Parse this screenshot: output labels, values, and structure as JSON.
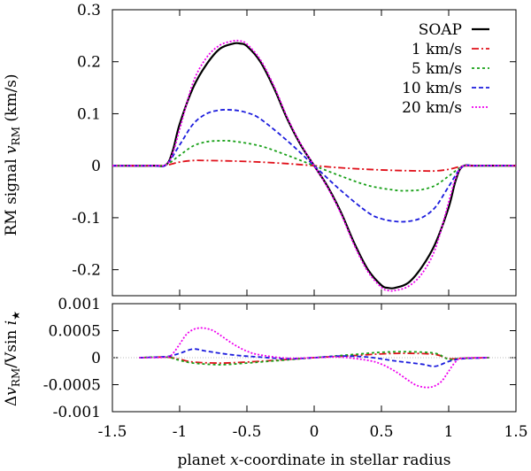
{
  "chart_data": [
    {
      "type": "line",
      "panel": "top",
      "title": "",
      "xlabel": "",
      "ylabel": "RM signal v_RM (km/s)",
      "ylabel_parts": {
        "main": "RM signal ",
        "var": "v",
        "sub": "RM",
        "unit": " (km/s)"
      },
      "xlim": [
        -1.5,
        1.5
      ],
      "ylim": [
        -0.25,
        0.3
      ],
      "yticks": [
        0.3,
        0.2,
        0.1,
        0,
        -0.1,
        -0.2
      ],
      "ytick_labels": [
        "0.3",
        "0.2",
        "0.1",
        "0",
        "-0.1",
        "-0.2"
      ],
      "legend_position": "top-right",
      "series": [
        {
          "name": "SOAP",
          "color": "#000000",
          "dash": "solid",
          "x": [
            -1.5,
            -1.2,
            -1.1,
            -1.05,
            -1.0,
            -0.9,
            -0.8,
            -0.7,
            -0.6,
            -0.55,
            -0.5,
            -0.4,
            -0.3,
            -0.2,
            -0.1,
            0,
            0.1,
            0.2,
            0.3,
            0.4,
            0.5,
            0.55,
            0.6,
            0.7,
            0.8,
            0.9,
            1.0,
            1.05,
            1.1,
            1.2,
            1.5
          ],
          "y": [
            0,
            0,
            0.002,
            0.03,
            0.08,
            0.15,
            0.195,
            0.225,
            0.235,
            0.235,
            0.23,
            0.2,
            0.15,
            0.09,
            0.04,
            0,
            -0.04,
            -0.09,
            -0.15,
            -0.2,
            -0.23,
            -0.235,
            -0.235,
            -0.225,
            -0.195,
            -0.15,
            -0.08,
            -0.03,
            -0.002,
            0,
            0
          ]
        },
        {
          "name": "1 km/s",
          "color": "#e0101a",
          "dash": "8 3 2 3",
          "x": [
            -1.5,
            -1.2,
            -1.1,
            -1.0,
            -0.9,
            -0.8,
            -0.6,
            -0.4,
            -0.2,
            0,
            0.2,
            0.4,
            0.6,
            0.8,
            0.9,
            1.0,
            1.1,
            1.2,
            1.5
          ],
          "y": [
            0,
            0,
            0.001,
            0.007,
            0.01,
            0.01,
            0.009,
            0.007,
            0.004,
            0,
            -0.004,
            -0.007,
            -0.009,
            -0.01,
            -0.01,
            -0.007,
            -0.001,
            0,
            0
          ]
        },
        {
          "name": "5 km/s",
          "color": "#18a018",
          "dash": "3 3",
          "x": [
            -1.5,
            -1.2,
            -1.1,
            -1.0,
            -0.9,
            -0.8,
            -0.7,
            -0.6,
            -0.4,
            -0.2,
            0,
            0.2,
            0.4,
            0.6,
            0.7,
            0.8,
            0.9,
            1.0,
            1.1,
            1.2,
            1.5
          ],
          "y": [
            0,
            0,
            0.002,
            0.02,
            0.038,
            0.046,
            0.048,
            0.047,
            0.038,
            0.02,
            0,
            -0.02,
            -0.038,
            -0.047,
            -0.048,
            -0.046,
            -0.038,
            -0.02,
            -0.002,
            0,
            0
          ]
        },
        {
          "name": "10 km/s",
          "color": "#1c1cdd",
          "dash": "5 3",
          "x": [
            -1.5,
            -1.2,
            -1.1,
            -1.0,
            -0.9,
            -0.8,
            -0.7,
            -0.6,
            -0.5,
            -0.4,
            -0.2,
            0,
            0.2,
            0.4,
            0.5,
            0.6,
            0.7,
            0.8,
            0.9,
            1.0,
            1.1,
            1.2,
            1.5
          ],
          "y": [
            0,
            0,
            0.002,
            0.04,
            0.08,
            0.1,
            0.107,
            0.107,
            0.102,
            0.09,
            0.048,
            0,
            -0.048,
            -0.09,
            -0.102,
            -0.107,
            -0.107,
            -0.1,
            -0.08,
            -0.04,
            -0.002,
            0,
            0
          ]
        },
        {
          "name": "20 km/s",
          "color": "#ee00ee",
          "dash": "2 2",
          "x": [
            -1.5,
            -1.2,
            -1.1,
            -1.05,
            -1.0,
            -0.9,
            -0.8,
            -0.7,
            -0.6,
            -0.55,
            -0.5,
            -0.4,
            -0.3,
            -0.2,
            -0.1,
            0,
            0.1,
            0.2,
            0.3,
            0.4,
            0.5,
            0.55,
            0.6,
            0.7,
            0.8,
            0.9,
            1.0,
            1.05,
            1.1,
            1.2,
            1.5
          ],
          "y": [
            0,
            0,
            0.002,
            0.025,
            0.07,
            0.16,
            0.208,
            0.232,
            0.24,
            0.24,
            0.234,
            0.204,
            0.154,
            0.093,
            0.042,
            0,
            -0.042,
            -0.093,
            -0.154,
            -0.204,
            -0.234,
            -0.24,
            -0.24,
            -0.232,
            -0.208,
            -0.16,
            -0.07,
            -0.025,
            -0.002,
            0,
            0
          ]
        }
      ]
    },
    {
      "type": "line",
      "panel": "bottom",
      "title": "",
      "xlabel": "planet x-coordinate in stellar radius",
      "xlabel_parts": {
        "pre": "planet ",
        "var": "x",
        "post": "-coordinate in stellar radius"
      },
      "ylabel": "Δv_RM/Vsin i_★",
      "ylabel_parts": {
        "delta": "Δ",
        "var": "v",
        "sub": "RM",
        "mid": "/Vsin ",
        "var2": "i",
        "sub2": "★"
      },
      "xlim": [
        -1.5,
        1.5
      ],
      "ylim": [
        -0.001,
        0.001
      ],
      "xticks": [
        -1.5,
        -1,
        -0.5,
        0,
        0.5,
        1,
        1.5
      ],
      "xtick_labels": [
        "-1.5",
        "-1",
        "-0.5",
        "0",
        "0.5",
        "1",
        "1.5"
      ],
      "yticks": [
        0.001,
        0.0005,
        0,
        -0.0005,
        -0.001
      ],
      "ytick_labels": [
        "0.001",
        "0.0005",
        "0",
        "-0.0005",
        "-0.001"
      ],
      "series": [
        {
          "name": "1 km/s",
          "color": "#e0101a",
          "dash": "8 3 2 3",
          "x": [
            -1.3,
            -1.1,
            -1.0,
            -0.9,
            -0.7,
            -0.5,
            -0.3,
            0,
            0.3,
            0.5,
            0.7,
            0.9,
            1.0,
            1.1,
            1.3
          ],
          "y": [
            0,
            1e-05,
            -3e-05,
            -8e-05,
            -0.0001,
            -8e-05,
            -5e-05,
            0,
            4e-05,
            7e-05,
            8e-05,
            6e-05,
            -2e-05,
            -1e-05,
            0
          ]
        },
        {
          "name": "5 km/s",
          "color": "#18a018",
          "dash": "3 3",
          "x": [
            -1.3,
            -1.1,
            -1.0,
            -0.9,
            -0.7,
            -0.5,
            -0.3,
            0,
            0.3,
            0.5,
            0.7,
            0.9,
            1.0,
            1.1,
            1.3
          ],
          "y": [
            0,
            1e-05,
            -5e-05,
            -0.0001,
            -0.00013,
            -0.0001,
            -6e-05,
            0,
            6e-05,
            0.0001,
            0.00011,
            8e-05,
            -3e-05,
            -1e-05,
            0
          ]
        },
        {
          "name": "10 km/s",
          "color": "#1c1cdd",
          "dash": "5 3",
          "x": [
            -1.3,
            -1.1,
            -1.0,
            -0.9,
            -0.8,
            -0.6,
            -0.4,
            -0.2,
            0,
            0.2,
            0.4,
            0.6,
            0.8,
            0.9,
            1.0,
            1.1,
            1.3
          ],
          "y": [
            0,
            2e-05,
            8e-05,
            0.00016,
            0.00012,
            5e-05,
            1e-05,
            -2e-05,
            0,
            3e-05,
            1e-05,
            -6e-05,
            -0.00012,
            -0.00016,
            -7e-05,
            -2e-05,
            0
          ]
        },
        {
          "name": "20 km/s",
          "color": "#ee00ee",
          "dash": "2 2",
          "x": [
            -1.3,
            -1.1,
            -1.05,
            -1.0,
            -0.95,
            -0.9,
            -0.85,
            -0.8,
            -0.75,
            -0.7,
            -0.6,
            -0.5,
            -0.4,
            -0.2,
            0,
            0.2,
            0.4,
            0.5,
            0.6,
            0.7,
            0.75,
            0.8,
            0.85,
            0.9,
            0.95,
            1.0,
            1.05,
            1.1,
            1.3
          ],
          "y": [
            0,
            1e-05,
            8e-05,
            0.00025,
            0.00043,
            0.00052,
            0.00055,
            0.00054,
            0.0005,
            0.00042,
            0.00025,
            0.00012,
            5e-05,
            -1e-05,
            0,
            1e-05,
            -5e-05,
            -0.00012,
            -0.00025,
            -0.00042,
            -0.0005,
            -0.00054,
            -0.00055,
            -0.00052,
            -0.00043,
            -0.00025,
            -8e-05,
            -1e-05,
            0
          ]
        }
      ]
    }
  ]
}
